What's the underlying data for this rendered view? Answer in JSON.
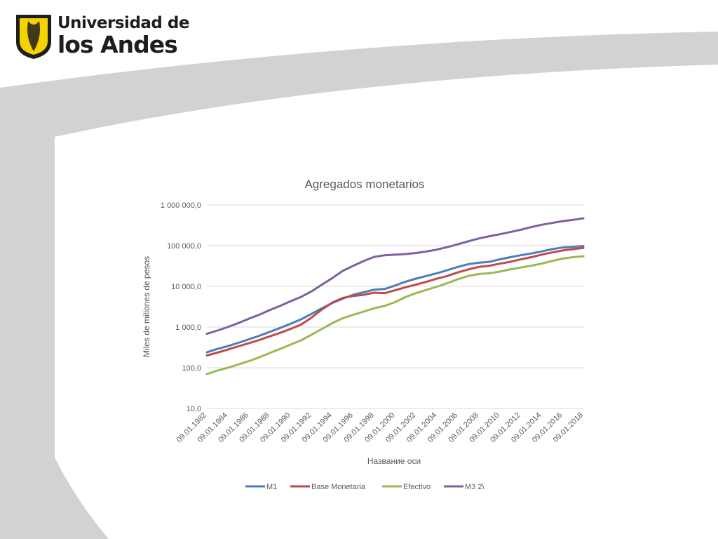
{
  "header": {
    "logo_line1": "Universidad de",
    "logo_line2": "los Andes"
  },
  "colors": {
    "M1": "#4a7ebb",
    "Base Monetaria": "#be4b48",
    "Efectivo": "#98b954",
    "M3 2\\": "#7d60a0",
    "grid": "#d9d9d9",
    "band": "#d1d2d4"
  },
  "chart_data": {
    "type": "line",
    "title": "Agregados monetarios",
    "xlabel": "Название оси",
    "ylabel": "Miles de millones de pesos",
    "yscale": "log",
    "ylim": [
      10,
      1000000
    ],
    "y_ticks": [
      10,
      100,
      1000,
      10000,
      100000,
      1000000
    ],
    "y_tick_labels": [
      "10,0",
      "100,0",
      "1 000,0",
      "10 000,0",
      "100 000,0",
      "1 000 000,0"
    ],
    "x_ticks": [
      "09.01.1982",
      "09.01.1984",
      "09.01.1986",
      "09.01.1988",
      "09.01.1990",
      "09.01.1992",
      "09.01.1994",
      "09.01.1996",
      "09.01.1998",
      "09.01.2000",
      "09.01.2002",
      "09.01.2004",
      "09.01.2006",
      "09.01.2008",
      "09.01.2010",
      "09.01.2012",
      "09.01.2014",
      "09.01.2016",
      "09.01.2018"
    ],
    "grid": true,
    "legend": "bottom",
    "x_years": [
      1982,
      1983,
      1984,
      1985,
      1986,
      1987,
      1988,
      1989,
      1990,
      1991,
      1992,
      1993,
      1994,
      1995,
      1996,
      1997,
      1998,
      1999,
      2000,
      2001,
      2002,
      2003,
      2004,
      2005,
      2006,
      2007,
      2008,
      2009,
      2010,
      2011,
      2012,
      2013,
      2014,
      2015,
      2016,
      2017,
      2018
    ],
    "series": [
      {
        "name": "M1",
        "values": [
          240,
          290,
          340,
          410,
          500,
          610,
          760,
          950,
          1200,
          1550,
          2100,
          2900,
          3900,
          5000,
          6200,
          7200,
          8300,
          8600,
          10500,
          13000,
          15500,
          18000,
          21000,
          25000,
          30000,
          35000,
          38000,
          40000,
          46000,
          52000,
          58000,
          64000,
          72000,
          82000,
          90000,
          93000,
          98000
        ]
      },
      {
        "name": "Base Monetaria",
        "values": [
          200,
          235,
          280,
          335,
          400,
          480,
          590,
          720,
          900,
          1150,
          1700,
          2700,
          4000,
          5200,
          5800,
          6200,
          7000,
          6800,
          8000,
          9500,
          11000,
          13000,
          15500,
          18000,
          22000,
          26000,
          30000,
          32000,
          36000,
          40000,
          46000,
          52000,
          60000,
          68000,
          76000,
          82000,
          88000
        ]
      },
      {
        "name": "Efectivo",
        "values": [
          70,
          85,
          100,
          120,
          145,
          180,
          230,
          290,
          370,
          470,
          650,
          900,
          1250,
          1650,
          2000,
          2400,
          2900,
          3300,
          4100,
          5500,
          6800,
          8200,
          9800,
          12000,
          15000,
          18000,
          20000,
          21000,
          23000,
          26000,
          29000,
          32000,
          36000,
          42000,
          48000,
          52000,
          55000
        ]
      },
      {
        "name": "M3 2\\",
        "values": [
          680,
          820,
          1000,
          1250,
          1600,
          2000,
          2600,
          3300,
          4300,
          5500,
          7500,
          11000,
          16000,
          24000,
          32000,
          42000,
          53000,
          58000,
          60000,
          62000,
          66000,
          72000,
          80000,
          92000,
          108000,
          128000,
          150000,
          170000,
          190000,
          215000,
          245000,
          285000,
          325000,
          360000,
          400000,
          430000,
          470000
        ]
      }
    ]
  }
}
